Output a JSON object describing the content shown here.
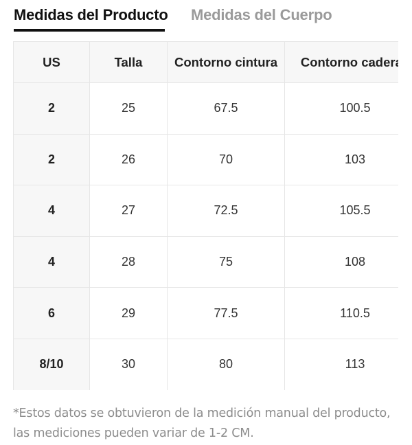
{
  "tabs": {
    "product_label": "Medidas del Producto",
    "body_label": "Medidas del Cuerpo",
    "active": "product"
  },
  "table": {
    "headers": [
      "US",
      "Talla",
      "Contorno cintura",
      "Contorno caderas"
    ],
    "rows": [
      [
        "2",
        "25",
        "67.5",
        "100.5"
      ],
      [
        "2",
        "26",
        "70",
        "103"
      ],
      [
        "4",
        "27",
        "72.5",
        "105.5"
      ],
      [
        "4",
        "28",
        "75",
        "108"
      ],
      [
        "6",
        "29",
        "77.5",
        "110.5"
      ],
      [
        "8/10",
        "30",
        "80",
        "113"
      ]
    ]
  },
  "note": {
    "line1": "*Estos datos se obtuvieron de la medición manual del producto,",
    "line2": "las mediciones pueden variar de 1-2 CM."
  },
  "colors": {
    "active_tab": "#111111",
    "inactive_tab": "#9a9a9a",
    "header_bg": "#f7f7f7",
    "border": "#e6e6e6",
    "note_text": "#8c8c8c"
  }
}
